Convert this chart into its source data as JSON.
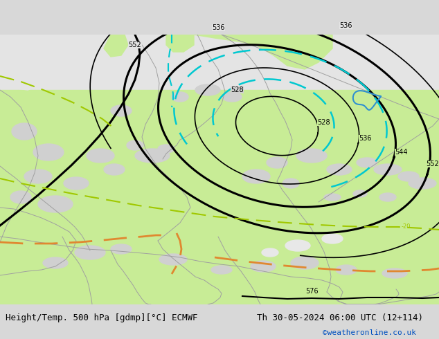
{
  "title_left": "Height/Temp. 500 hPa [gdmp][°C] ECMWF",
  "title_right": "Th 30-05-2024 06:00 UTC (12+114)",
  "credit": "©weatheronline.co.uk",
  "land_color": "#c8ec96",
  "gray_color": "#d0d0d0",
  "gray_light": "#e4e4e4",
  "bottom_bar_color": "#d8d8d8",
  "black": "#000000",
  "cyan_color": "#00c8d0",
  "green_dash_color": "#a0c800",
  "orange_dash_color": "#e08830",
  "blue_color": "#3090d0",
  "border_color": "#a0a0a0",
  "title_fontsize": 9,
  "credit_fontsize": 8,
  "credit_color": "#0050c0"
}
